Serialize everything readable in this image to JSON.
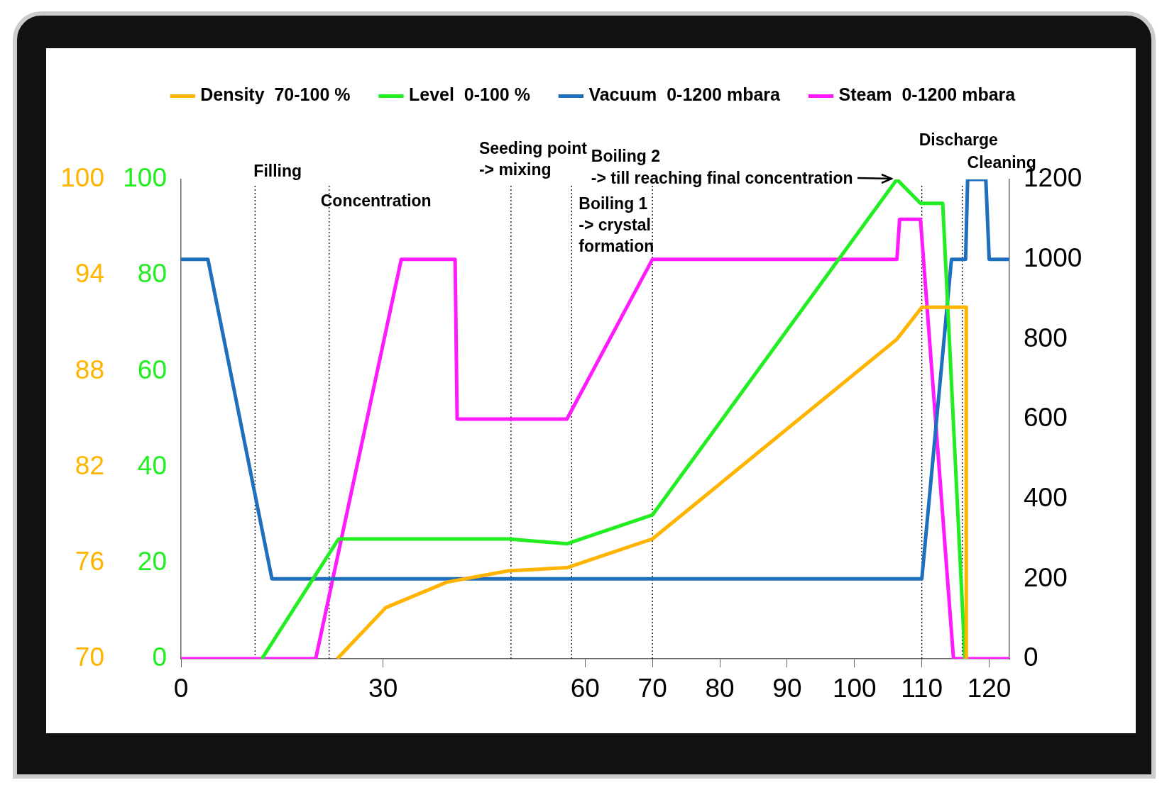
{
  "chart_data": {
    "type": "line",
    "legend": "top",
    "grid": false,
    "marker": "none",
    "line_style": "solid",
    "xlim": [
      0,
      123
    ],
    "xticks": [
      0,
      30,
      60,
      70,
      80,
      90,
      100,
      110,
      120
    ],
    "ylim": [
      0,
      100
    ],
    "yticks": [
      0,
      20,
      40,
      60,
      80,
      100
    ],
    "y2lim": [
      0,
      1200
    ],
    "y2ticks": [
      0,
      200,
      400,
      600,
      800,
      1000,
      1200
    ],
    "y3lim": [
      70,
      100
    ],
    "y3ticks": [
      70,
      76,
      82,
      88,
      94,
      100
    ],
    "series": [
      {
        "name": "Density  70-100 %",
        "color": "#ffb400",
        "axis": "y3",
        "x": [
          23.2,
          30.4,
          39.5,
          48.6,
          57.3,
          70,
          106.3,
          110,
          116.6,
          116.6
        ],
        "values": [
          70,
          73.2,
          74.8,
          75.5,
          75.7,
          77.5,
          90,
          92,
          92,
          70
        ]
      },
      {
        "name": "Level  0-100 %",
        "color": "#22ee22",
        "axis": "y",
        "x": [
          12,
          23.4,
          48.6,
          57.3,
          70,
          106.3,
          109.8,
          113.1,
          116.4
        ],
        "values": [
          0,
          25,
          25,
          24,
          30,
          100,
          95,
          95,
          0
        ]
      },
      {
        "name": "Vacuum  0-1200 mbara",
        "color": "#1f6fbf",
        "axis": "y2",
        "x": [
          0,
          4,
          13.5,
          110,
          114.4,
          116.5,
          116.8,
          119.5,
          120,
          123
        ],
        "values": [
          1000,
          1000,
          200,
          200,
          1000,
          1000,
          1200,
          1200,
          1000,
          1000
        ]
      },
      {
        "name": "Steam  0-1200 mbara",
        "color": "#ff1aff",
        "axis": "y2",
        "x": [
          0,
          20,
          32.7,
          40.7,
          41,
          57.3,
          70,
          106.3,
          106.7,
          109.8,
          114.7,
          123
        ],
        "values": [
          0,
          0,
          1000,
          1000,
          600,
          600,
          1000,
          1000,
          1100,
          1100,
          0,
          0
        ]
      }
    ],
    "ref_lines": [
      {
        "axis": "x",
        "value": 11,
        "label": "Filling",
        "line_style": "dotted"
      },
      {
        "axis": "x",
        "value": 22,
        "label": "Concentration",
        "line_style": "dotted"
      },
      {
        "axis": "x",
        "value": 49,
        "label": "Seeding point\n-> mixing",
        "line_style": "dotted"
      },
      {
        "axis": "x",
        "value": 58,
        "label": "Boiling 1\n-> crystal\nformation",
        "line_style": "dotted"
      },
      {
        "axis": "x",
        "value": 70,
        "line_style": "dotted"
      },
      {
        "axis": "x",
        "value": 110,
        "label": "Discharge",
        "line_style": "dotted"
      },
      {
        "axis": "x",
        "value": 116,
        "label": "Cleaning",
        "line_style": "dotted"
      }
    ],
    "annotations": [
      {
        "text": "Boiling 2\n-> till reaching final concentration",
        "x": 106.3,
        "y": 100
      }
    ]
  }
}
